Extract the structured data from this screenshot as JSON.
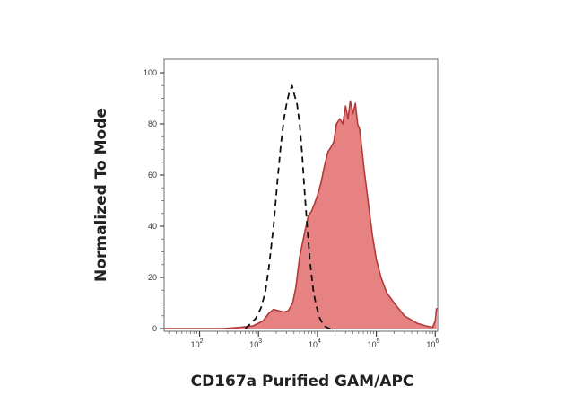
{
  "chart_data": {
    "type": "area",
    "title": "",
    "xlabel": "CD167a Purified GAM/APC",
    "ylabel": "Normalized To Mode",
    "x_scale": "log",
    "xlim": [
      25,
      1100000
    ],
    "ylim": [
      0,
      100
    ],
    "x_ticks": [
      {
        "value": 100,
        "base": "10",
        "exp": "2"
      },
      {
        "value": 1000,
        "base": "10",
        "exp": "3"
      },
      {
        "value": 10000,
        "base": "10",
        "exp": "4"
      },
      {
        "value": 100000,
        "base": "10",
        "exp": "5"
      },
      {
        "value": 1000000,
        "base": "10",
        "exp": "6"
      }
    ],
    "y_ticks": [
      "0",
      "20",
      "40",
      "60",
      "80",
      "100"
    ],
    "grid": false,
    "series": [
      {
        "style": "filled",
        "color": "#e06666",
        "edge_color": "#b23a3a",
        "x": [
          25,
          100,
          250,
          500,
          800,
          1200,
          1500,
          1800,
          2200,
          2700,
          3200,
          3800,
          4300,
          5000,
          6000,
          7000,
          8000,
          9000,
          10000,
          11500,
          13000,
          15000,
          17000,
          19000,
          21000,
          24000,
          27000,
          30000,
          33000,
          36000,
          40000,
          44000,
          48000,
          52000,
          57000,
          62000,
          68000,
          75000,
          85000,
          100000,
          120000,
          150000,
          200000,
          300000,
          500000,
          700000,
          900000,
          1000000,
          1050000
        ],
        "y": [
          0,
          0,
          0,
          0.5,
          1,
          3,
          6,
          7.5,
          7,
          6.5,
          7,
          10,
          16,
          28,
          37,
          44,
          46,
          49,
          52,
          57,
          63,
          69,
          71,
          73,
          80,
          82,
          80,
          87,
          82,
          89,
          84,
          88,
          80,
          78,
          70,
          62,
          55,
          47,
          37,
          27,
          20,
          14,
          10,
          5,
          2,
          1,
          0.5,
          3,
          8
        ]
      },
      {
        "style": "dashed",
        "color": "#111111",
        "x": [
          600,
          900,
          1100,
          1300,
          1500,
          1800,
          2100,
          2400,
          2700,
          3000,
          3300,
          3700,
          4100,
          4500,
          5000,
          5500,
          6000,
          6700,
          7500,
          8500,
          9500,
          11000,
          13000,
          16000,
          20000
        ],
        "y": [
          0,
          4,
          8,
          14,
          24,
          40,
          58,
          72,
          82,
          88,
          92,
          95,
          91,
          88,
          80,
          68,
          55,
          40,
          26,
          15,
          9,
          4,
          1,
          0,
          0
        ]
      }
    ]
  }
}
